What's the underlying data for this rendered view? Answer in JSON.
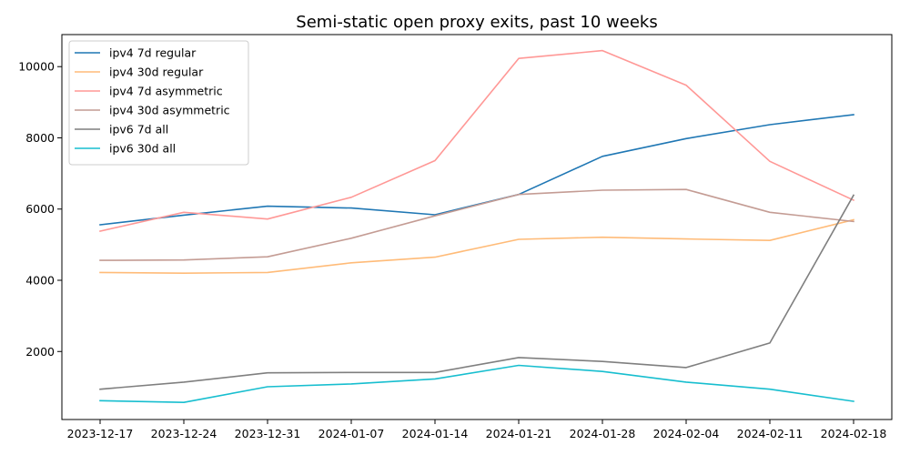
{
  "chart_data": {
    "type": "line",
    "title": "Semi-static open proxy exits, past 10 weeks",
    "xlabel": "",
    "ylabel": "",
    "x": [
      "2023-12-17",
      "2023-12-24",
      "2023-12-31",
      "2024-01-07",
      "2024-01-14",
      "2024-01-21",
      "2024-01-28",
      "2024-02-04",
      "2024-02-11",
      "2024-02-18"
    ],
    "ylim": [
      90,
      10900
    ],
    "yticks": [
      2000,
      4000,
      6000,
      8000,
      10000
    ],
    "grid": false,
    "legend_position": "top-left",
    "series": [
      {
        "name": "ipv4 7d regular",
        "color": "#1f77b4",
        "values": [
          5560,
          5830,
          6080,
          6030,
          5840,
          6410,
          7480,
          7980,
          8370,
          8650
        ]
      },
      {
        "name": "ipv4 30d regular",
        "color": "#ffbb78",
        "values": [
          4220,
          4200,
          4220,
          4490,
          4650,
          5150,
          5210,
          5160,
          5120,
          5700
        ]
      },
      {
        "name": "ipv4 7d asymmetric",
        "color": "#ff9896",
        "values": [
          5380,
          5910,
          5720,
          6330,
          7360,
          10230,
          10450,
          9480,
          7340,
          6250
        ]
      },
      {
        "name": "ipv4 30d asymmetric",
        "color": "#c49c94",
        "values": [
          4560,
          4570,
          4660,
          5180,
          5810,
          6410,
          6530,
          6550,
          5910,
          5650
        ]
      },
      {
        "name": "ipv6 7d all",
        "color": "#7f7f7f",
        "values": [
          940,
          1140,
          1400,
          1410,
          1410,
          1830,
          1720,
          1550,
          2240,
          6390
        ]
      },
      {
        "name": "ipv6 30d all",
        "color": "#17becf",
        "values": [
          620,
          570,
          1010,
          1090,
          1230,
          1610,
          1440,
          1140,
          940,
          600
        ]
      }
    ]
  }
}
